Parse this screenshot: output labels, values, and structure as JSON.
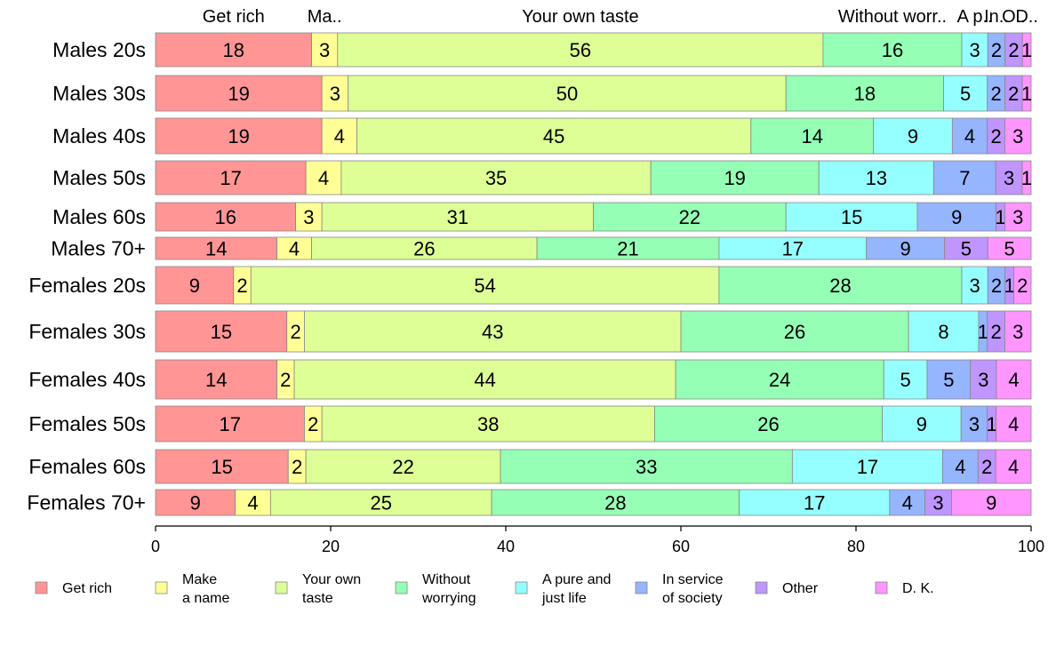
{
  "chart_data": {
    "type": "bar",
    "orientation": "horizontal",
    "stacked": true,
    "title": "",
    "xlabel": "",
    "ylabel": "",
    "xlim": [
      0,
      100
    ],
    "xticks": [
      0,
      20,
      40,
      60,
      80,
      100
    ],
    "categories": [
      "Males 20s",
      "Males 30s",
      "Males 40s",
      "Males 50s",
      "Males 60s",
      "Males 70+",
      "Females 20s",
      "Females 30s",
      "Females 40s",
      "Females 50s",
      "Females 60s",
      "Females 70+"
    ],
    "top_labels": [
      "Get rich",
      "Ma..",
      "Your own taste",
      "Without worr..",
      "A p..",
      "In..",
      "O..",
      "D.."
    ],
    "series": [
      {
        "name": "Get rich",
        "legend_lines": [
          "Get rich"
        ],
        "color": "#ff9595",
        "values": [
          18,
          19,
          19,
          17,
          16,
          14,
          9,
          15,
          14,
          17,
          15,
          9
        ]
      },
      {
        "name": "Make a name",
        "legend_lines": [
          "Make",
          "a name"
        ],
        "color": "#ffff95",
        "values": [
          3,
          3,
          4,
          4,
          3,
          4,
          2,
          2,
          2,
          2,
          2,
          4
        ]
      },
      {
        "name": "Your own taste",
        "legend_lines": [
          "Your own",
          "taste"
        ],
        "color": "#ddff95",
        "values": [
          56,
          50,
          45,
          35,
          31,
          26,
          54,
          43,
          44,
          38,
          22,
          25
        ]
      },
      {
        "name": "Without worrying",
        "legend_lines": [
          "Without",
          "worrying"
        ],
        "color": "#95ffb5",
        "values": [
          16,
          18,
          14,
          19,
          22,
          21,
          28,
          26,
          24,
          26,
          33,
          28
        ]
      },
      {
        "name": "A pure and just life",
        "legend_lines": [
          "A pure and",
          "just life"
        ],
        "color": "#95ffff",
        "values": [
          3,
          5,
          9,
          13,
          15,
          17,
          3,
          8,
          5,
          9,
          17,
          17
        ]
      },
      {
        "name": "In service of society",
        "legend_lines": [
          "In service",
          "of society"
        ],
        "color": "#95b5ff",
        "values": [
          2,
          2,
          4,
          7,
          9,
          9,
          2,
          1,
          5,
          3,
          4,
          4
        ]
      },
      {
        "name": "Other",
        "legend_lines": [
          "Other"
        ],
        "color": "#bf95ff",
        "values": [
          2,
          2,
          2,
          3,
          1,
          5,
          1,
          2,
          3,
          1,
          2,
          3
        ]
      },
      {
        "name": "D. K.",
        "legend_lines": [
          "D. K."
        ],
        "color": "#ff95ff",
        "values": [
          1,
          1,
          3,
          1,
          3,
          5,
          2,
          3,
          4,
          4,
          4,
          9
        ]
      }
    ],
    "legend_position": "bottom"
  }
}
